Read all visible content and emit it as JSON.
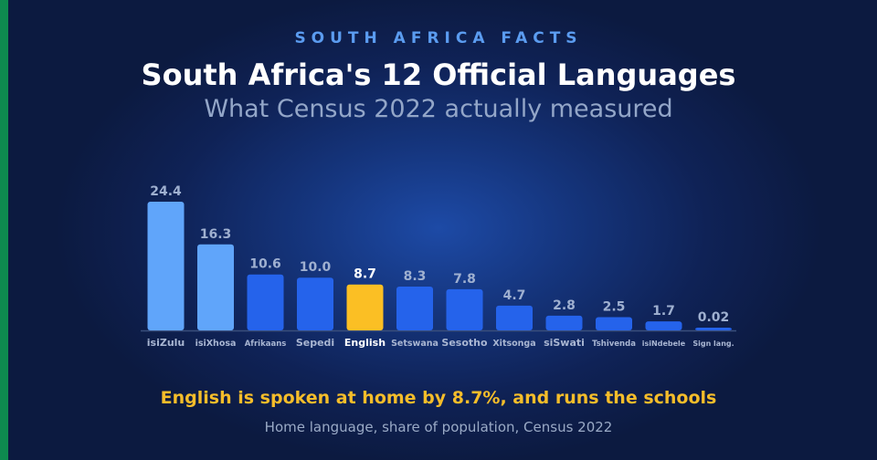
{
  "header": {
    "eyebrow": "SOUTH AFRICA FACTS",
    "title": "South Africa's 12 Official Languages",
    "subtitle": "What Census 2022 actually measured"
  },
  "footer": {
    "headline": "English is spoken at home by 8.7%, and runs the schools",
    "caption": "Home language, share of population, Census 2022"
  },
  "colors": {
    "light_bar": "#60a5fa",
    "dark_bar": "#2563eb",
    "highlight_bar": "#fbbf24",
    "accent": "#0e8a4f"
  },
  "chart_data": {
    "type": "bar",
    "categories": [
      "isiZulu",
      "isiXhosa",
      "Afrikaans",
      "Sepedi",
      "English",
      "Setswana",
      "Sesotho",
      "Xitsonga",
      "siSwati",
      "Tshivenda",
      "isiNdebele",
      "Sign lang."
    ],
    "value_labels": [
      "24.4",
      "16.3",
      "10.6",
      "10.0",
      "8.7",
      "8.3",
      "7.8",
      "4.7",
      "2.8",
      "2.5",
      "1.7",
      "0.02"
    ],
    "values": [
      24.4,
      16.3,
      10.6,
      10.0,
      8.7,
      8.3,
      7.8,
      4.7,
      2.8,
      2.5,
      1.7,
      0.02
    ],
    "highlight": "English",
    "top_two_lighter": true,
    "grid": false,
    "legend": "none",
    "ylim": [
      0,
      24.4
    ]
  }
}
